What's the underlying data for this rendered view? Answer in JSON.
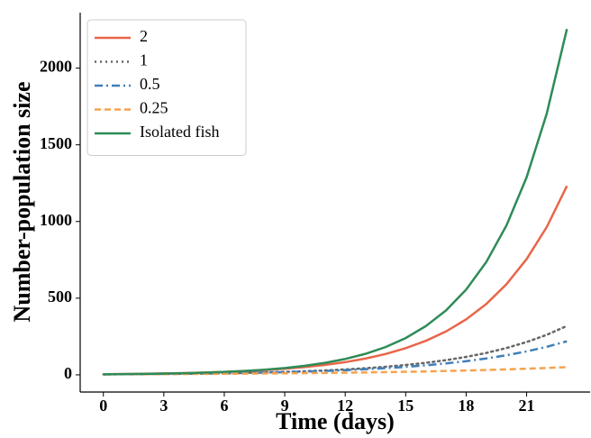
{
  "chart_data": {
    "type": "line",
    "xlabel": "Time (days)",
    "ylabel": "Number-population size",
    "x": [
      0,
      1,
      2,
      3,
      4,
      5,
      6,
      7,
      8,
      9,
      10,
      11,
      12,
      13,
      14,
      15,
      16,
      17,
      18,
      19,
      20,
      21,
      22,
      23
    ],
    "series": [
      {
        "name": "2",
        "color": "#e8664a",
        "linestyle": "solid",
        "values": [
          4.4,
          5.62,
          7.18,
          9.18,
          11.7,
          15.0,
          19.1,
          24.4,
          31.2,
          39.9,
          50.9,
          65.1,
          83.1,
          106,
          136,
          174,
          222,
          283,
          362,
          462,
          591,
          755,
          964,
          1232
        ]
      },
      {
        "name": "1",
        "color": "#666666",
        "linestyle": "dotted",
        "values": [
          3.2,
          3.91,
          4.77,
          5.83,
          7.12,
          8.7,
          10.6,
          13.0,
          15.8,
          19.4,
          23.6,
          28.9,
          35.3,
          43.1,
          52.6,
          64.3,
          78.5,
          95.9,
          117,
          143,
          175,
          214,
          261,
          319
        ]
      },
      {
        "name": "0.5",
        "color": "#3f7fb8",
        "linestyle": "dashdot",
        "values": [
          3.5,
          4.19,
          5.02,
          6.01,
          7.19,
          8.61,
          10.3,
          12.3,
          14.8,
          17.7,
          21.2,
          25.4,
          30.4,
          36.3,
          43.5,
          52.1,
          62.3,
          74.6,
          89.3,
          107,
          128,
          153,
          183,
          219
        ]
      },
      {
        "name": "0.25",
        "color": "#f5a34f",
        "linestyle": "dashed",
        "values": [
          3.5,
          3.93,
          4.41,
          4.96,
          5.57,
          6.25,
          7.02,
          7.88,
          8.85,
          9.94,
          11.2,
          12.5,
          14.1,
          15.8,
          17.8,
          19.9,
          22.4,
          25.1,
          28.2,
          31.7,
          35.6,
          40.0,
          44.9,
          50.4
        ]
      },
      {
        "name": "Isolated fish",
        "color": "#2e8b57",
        "linestyle": "solid",
        "values": [
          3.6,
          4.76,
          6.3,
          8.34,
          11.0,
          14.6,
          19.3,
          25.6,
          33.8,
          44.7,
          59.2,
          78.3,
          103.6,
          137,
          181,
          240,
          318,
          420,
          556,
          736,
          974,
          1288,
          1704,
          2255
        ]
      }
    ],
    "xlim": [
      -1.15,
      24.15
    ],
    "xticks": [
      0,
      3,
      6,
      9,
      12,
      15,
      18,
      21
    ],
    "ylim": [
      -112,
      2362
    ],
    "yticks": [
      0,
      500,
      1000,
      1500,
      2000
    ],
    "legend": "upper left"
  }
}
